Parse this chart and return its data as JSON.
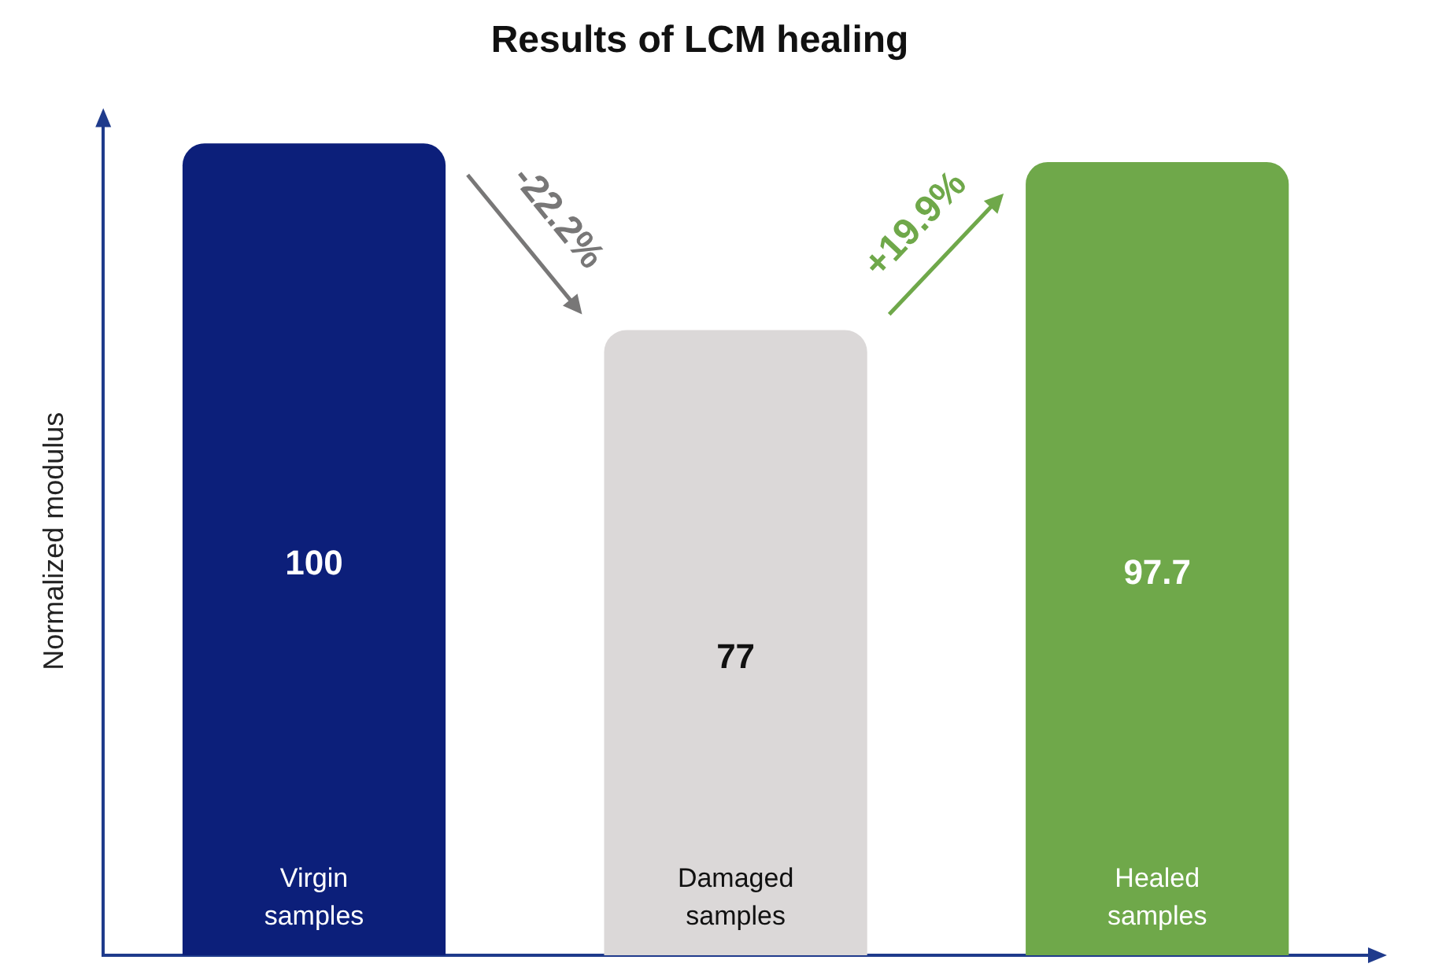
{
  "chart_data": {
    "type": "bar",
    "title": "Results of LCM healing",
    "ylabel": "Normalized modulus",
    "categories": [
      "Virgin samples",
      "Damaged samples",
      "Healed samples"
    ],
    "values": [
      100,
      77,
      97.7
    ],
    "colors": [
      "#0c1f7a",
      "#dbd8d8",
      "#6fa84a"
    ],
    "data_labels": true,
    "annotations": [
      "-22.2%",
      "+19.9%"
    ],
    "grid": false,
    "legend": false
  }
}
